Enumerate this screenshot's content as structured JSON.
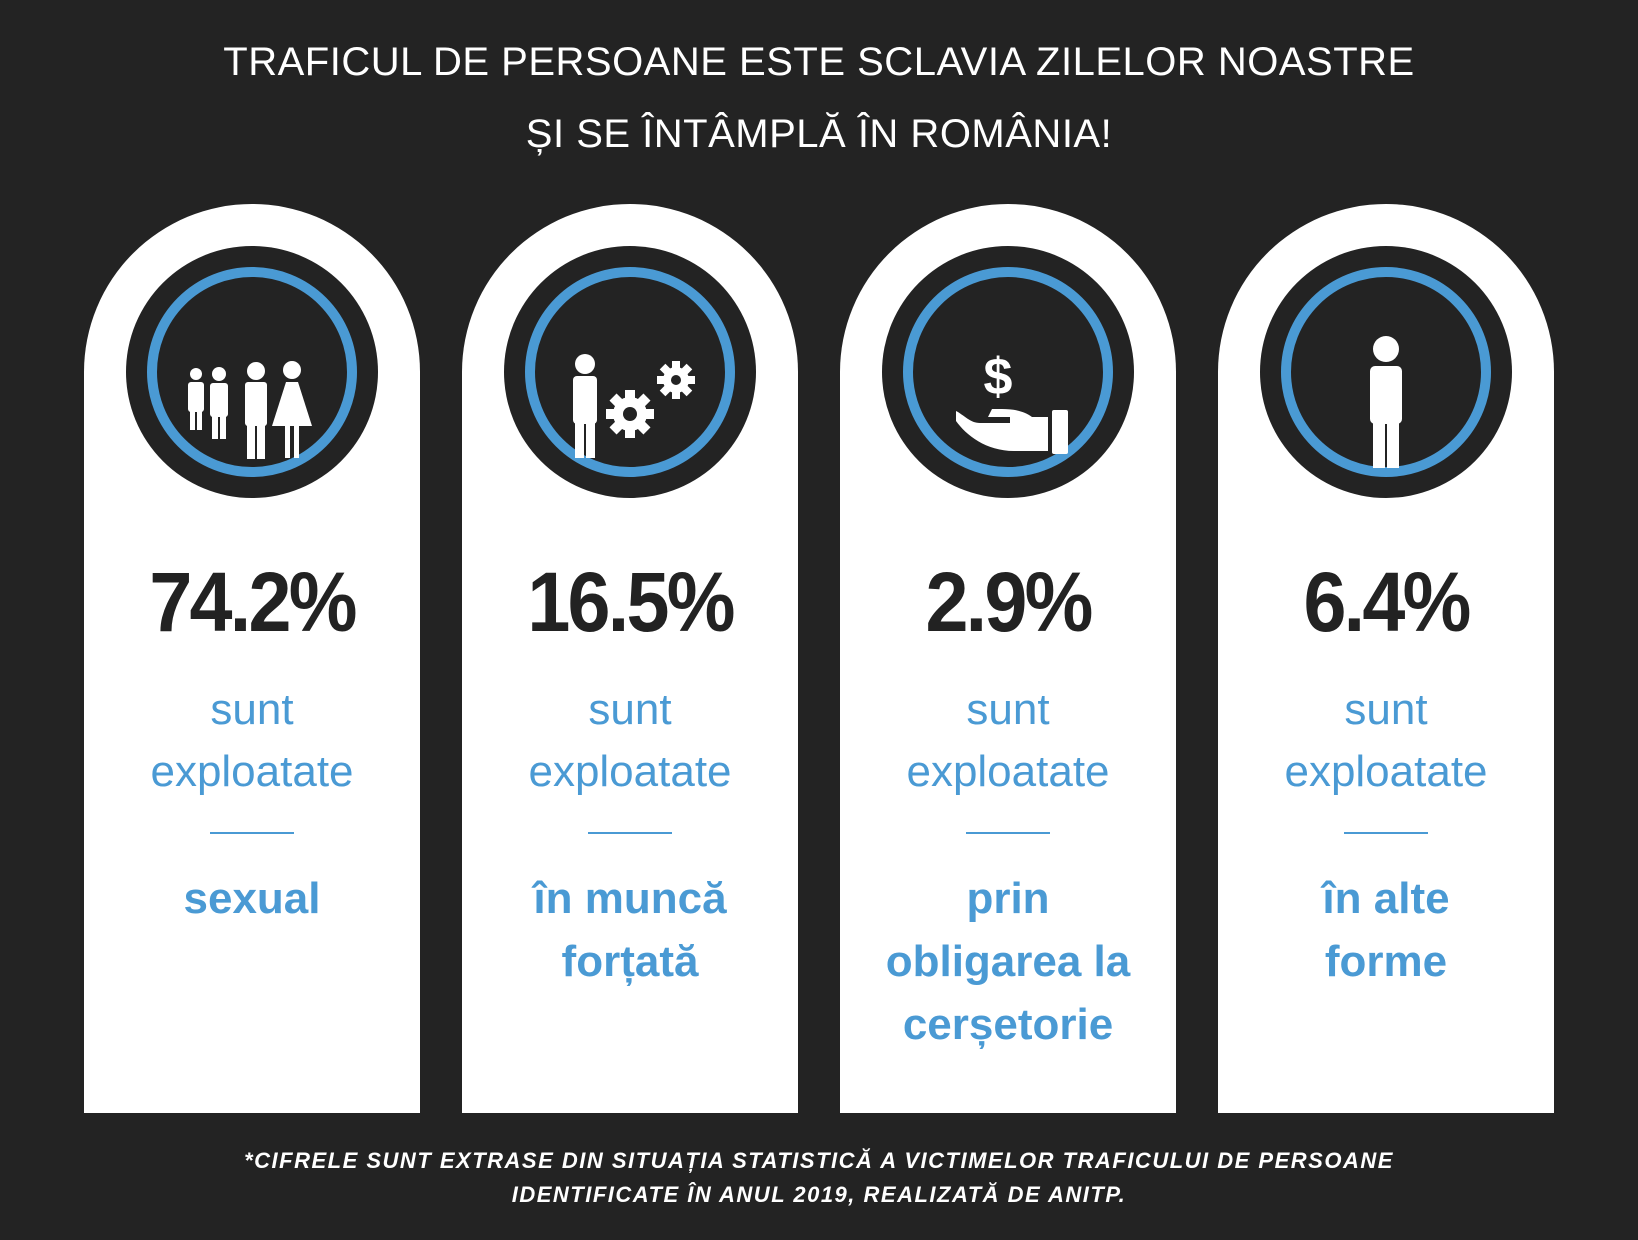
{
  "header": {
    "line1": "TRAFICUL DE PERSOANE ESTE SCLAVIA ZILELOR NOASTRE",
    "line2": "ȘI SE ÎNTÂMPLĂ ÎN ROMÂNIA!"
  },
  "accent_color": "#4a9ad4",
  "cards": [
    {
      "icon": "family-icon",
      "percent": "74.2%",
      "sub1": "sunt",
      "sub2": "exploatate",
      "category": [
        "sexual"
      ]
    },
    {
      "icon": "worker-gears-icon",
      "percent": "16.5%",
      "sub1": "sunt",
      "sub2": "exploatate",
      "category": [
        "în muncă",
        "forțată"
      ]
    },
    {
      "icon": "hand-dollar-icon",
      "percent": "2.9%",
      "sub1": "sunt",
      "sub2": "exploatate",
      "category": [
        "prin",
        "obligarea la",
        "cerșetorie"
      ]
    },
    {
      "icon": "person-icon",
      "percent": "6.4%",
      "sub1": "sunt",
      "sub2": "exploatate",
      "category": [
        "în alte",
        "forme"
      ]
    }
  ],
  "footer": {
    "line1": "*CIFRELE SUNT EXTRASE DIN SITUAȚIA STATISTICĂ A VICTIMELOR TRAFICULUI DE PERSOANE",
    "line2": "IDENTIFICATE ÎN ANUL 2019, REALIZATĂ DE ANITP."
  }
}
